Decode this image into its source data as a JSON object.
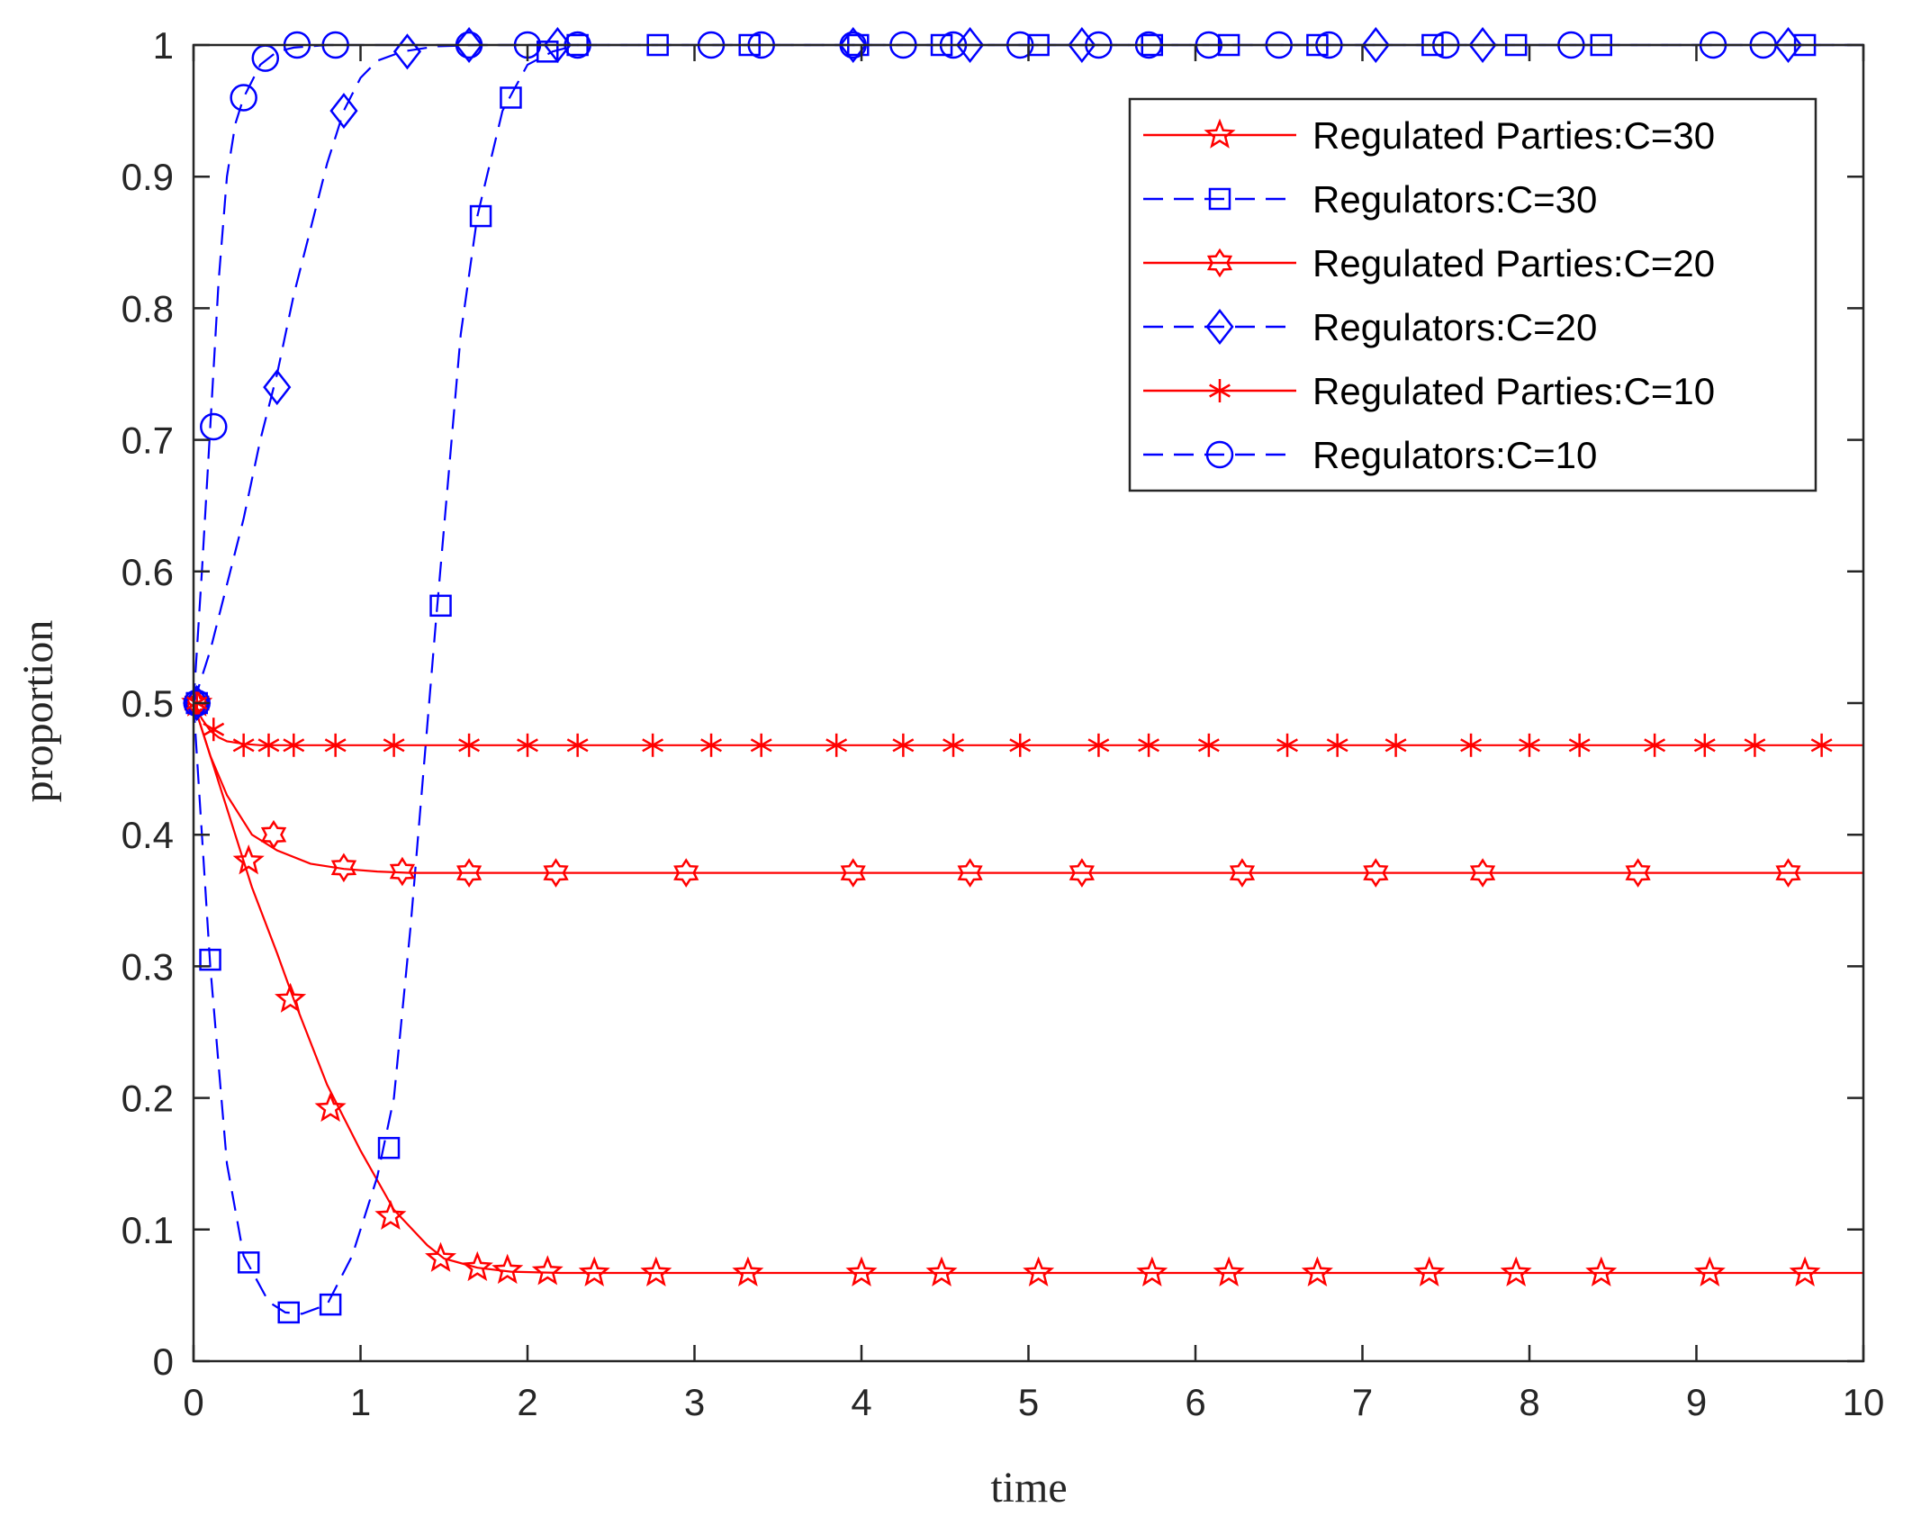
{
  "chart_data": {
    "type": "line",
    "title": "",
    "xlabel": "time",
    "ylabel": "proportion",
    "xlim": [
      0,
      10
    ],
    "ylim": [
      0,
      1
    ],
    "xticks": [
      0,
      1,
      2,
      3,
      4,
      5,
      6,
      7,
      8,
      9,
      10
    ],
    "yticks": [
      0,
      0.1,
      0.2,
      0.3,
      0.4,
      0.5,
      0.6,
      0.7,
      0.8,
      0.9,
      1
    ],
    "xtick_labels": [
      "0",
      "1",
      "2",
      "3",
      "4",
      "5",
      "6",
      "7",
      "8",
      "9",
      "10"
    ],
    "ytick_labels": [
      "0",
      "0.1",
      "0.2",
      "0.3",
      "0.4",
      "0.5",
      "0.6",
      "0.7",
      "0.8",
      "0.9",
      "1"
    ],
    "grid": false,
    "legend_position": "top-right",
    "series": [
      {
        "name": "Regulated Parties:C=30",
        "color": "#ff0000",
        "line_style": "solid",
        "marker": "pentagram",
        "x": [
          0,
          0.1,
          0.2,
          0.35,
          0.5,
          0.6,
          0.8,
          1.0,
          1.2,
          1.4,
          1.5,
          1.7,
          1.9,
          2.2,
          2.6,
          3.0,
          4.0,
          10
        ],
        "y": [
          0.5,
          0.46,
          0.42,
          0.36,
          0.31,
          0.275,
          0.21,
          0.16,
          0.115,
          0.088,
          0.078,
          0.071,
          0.068,
          0.067,
          0.067,
          0.067,
          0.067,
          0.067
        ],
        "markers_x": [
          0.02,
          0.33,
          0.58,
          0.82,
          1.18,
          1.48,
          1.7,
          1.88,
          2.12,
          2.4,
          2.77,
          3.32,
          4.0,
          4.48,
          5.06,
          5.74,
          6.2,
          6.73,
          7.4,
          7.92,
          8.43,
          9.08,
          9.65
        ],
        "markers_y": [
          0.5,
          0.38,
          0.275,
          0.192,
          0.11,
          0.078,
          0.071,
          0.069,
          0.068,
          0.067,
          0.067,
          0.067,
          0.067,
          0.067,
          0.067,
          0.067,
          0.067,
          0.067,
          0.067,
          0.067,
          0.067,
          0.067,
          0.067
        ]
      },
      {
        "name": "Regulators:C=30",
        "color": "#0000ff",
        "line_style": "dashed",
        "marker": "square",
        "x": [
          0,
          0.05,
          0.1,
          0.2,
          0.3,
          0.45,
          0.55,
          0.65,
          0.8,
          0.95,
          1.1,
          1.2,
          1.3,
          1.45,
          1.6,
          1.7,
          1.85,
          2.0,
          2.15,
          2.3,
          2.6,
          10
        ],
        "y": [
          0.5,
          0.4,
          0.3,
          0.15,
          0.08,
          0.045,
          0.037,
          0.036,
          0.043,
          0.08,
          0.14,
          0.2,
          0.33,
          0.56,
          0.78,
          0.87,
          0.95,
          0.985,
          0.995,
          1.0,
          1.0,
          1.0
        ],
        "markers_x": [
          0.02,
          0.1,
          0.33,
          0.57,
          0.82,
          1.17,
          1.48,
          1.72,
          1.9,
          2.12,
          2.3,
          2.78,
          3.33,
          3.98,
          4.48,
          5.06,
          5.74,
          6.2,
          6.73,
          7.42,
          7.92,
          8.43,
          9.65
        ],
        "markers_y": [
          0.5,
          0.305,
          0.075,
          0.037,
          0.043,
          0.162,
          0.574,
          0.87,
          0.96,
          0.995,
          1.0,
          1.0,
          1.0,
          1.0,
          1.0,
          1.0,
          1.0,
          1.0,
          1.0,
          1.0,
          1.0,
          1.0,
          1.0
        ]
      },
      {
        "name": "Regulated Parties:C=20",
        "color": "#ff0000",
        "line_style": "solid",
        "marker": "hexagram",
        "x": [
          0,
          0.1,
          0.2,
          0.35,
          0.5,
          0.7,
          0.9,
          1.1,
          1.3,
          1.6,
          2.0,
          10
        ],
        "y": [
          0.5,
          0.46,
          0.43,
          0.4,
          0.388,
          0.378,
          0.374,
          0.372,
          0.371,
          0.371,
          0.371,
          0.371
        ],
        "markers_x": [
          0.02,
          0.48,
          0.9,
          1.25,
          1.65,
          2.17,
          2.95,
          3.95,
          4.65,
          5.32,
          6.28,
          7.08,
          7.72,
          8.65,
          9.55
        ],
        "markers_y": [
          0.5,
          0.4,
          0.375,
          0.372,
          0.371,
          0.371,
          0.371,
          0.371,
          0.371,
          0.371,
          0.371,
          0.371,
          0.371,
          0.371,
          0.371
        ]
      },
      {
        "name": "Regulators:C=20",
        "color": "#0000ff",
        "line_style": "dashed",
        "marker": "diamond",
        "x": [
          0,
          0.1,
          0.2,
          0.3,
          0.4,
          0.5,
          0.6,
          0.7,
          0.8,
          0.9,
          1.0,
          1.1,
          1.25,
          1.45,
          1.7,
          2.0,
          10
        ],
        "y": [
          0.5,
          0.54,
          0.59,
          0.64,
          0.7,
          0.75,
          0.81,
          0.86,
          0.91,
          0.95,
          0.975,
          0.988,
          0.995,
          0.999,
          1.0,
          1.0,
          1.0
        ],
        "markers_x": [
          0.02,
          0.5,
          0.9,
          1.28,
          1.65,
          2.18,
          3.95,
          4.65,
          5.32,
          7.08,
          7.72,
          9.55
        ],
        "markers_y": [
          0.5,
          0.74,
          0.95,
          0.995,
          1.0,
          1.0,
          1.0,
          1.0,
          1.0,
          1.0,
          1.0,
          1.0
        ]
      },
      {
        "name": "Regulated Parties:C=10",
        "color": "#ff0000",
        "line_style": "solid",
        "marker": "asterisk",
        "x": [
          0,
          0.05,
          0.1,
          0.15,
          0.2,
          0.3,
          0.4,
          0.5,
          10
        ],
        "y": [
          0.5,
          0.488,
          0.479,
          0.474,
          0.471,
          0.469,
          0.468,
          0.468,
          0.468
        ],
        "markers_x": [
          0.02,
          0.12,
          0.3,
          0.45,
          0.6,
          0.85,
          1.2,
          1.65,
          2.0,
          2.3,
          2.75,
          3.1,
          3.4,
          3.85,
          4.25,
          4.55,
          4.95,
          5.42,
          5.72,
          6.08,
          6.55,
          6.85,
          7.2,
          7.65,
          8.0,
          8.3,
          8.75,
          9.05,
          9.35,
          9.75
        ],
        "markers_y": [
          0.5,
          0.48,
          0.468,
          0.468,
          0.468,
          0.468,
          0.468,
          0.468,
          0.468,
          0.468,
          0.468,
          0.468,
          0.468,
          0.468,
          0.468,
          0.468,
          0.468,
          0.468,
          0.468,
          0.468,
          0.468,
          0.468,
          0.468,
          0.468,
          0.468,
          0.468,
          0.468,
          0.468,
          0.468,
          0.468
        ]
      },
      {
        "name": "Regulators:C=10",
        "color": "#0000ff",
        "line_style": "dashed",
        "marker": "circle",
        "x": [
          0,
          0.05,
          0.1,
          0.15,
          0.2,
          0.25,
          0.3,
          0.4,
          0.5,
          0.6,
          0.8,
          1.0,
          10
        ],
        "y": [
          0.5,
          0.6,
          0.71,
          0.82,
          0.9,
          0.94,
          0.96,
          0.985,
          0.995,
          0.998,
          1.0,
          1.0,
          1.0
        ],
        "markers_x": [
          0.02,
          0.12,
          0.3,
          0.43,
          0.62,
          0.85,
          1.65,
          2.0,
          2.3,
          3.1,
          3.4,
          3.95,
          4.25,
          4.55,
          4.95,
          5.42,
          5.72,
          6.08,
          6.5,
          6.8,
          7.5,
          8.25,
          9.1,
          9.4
        ],
        "markers_y": [
          0.5,
          0.71,
          0.96,
          0.99,
          1.0,
          1.0,
          1.0,
          1.0,
          1.0,
          1.0,
          1.0,
          1.0,
          1.0,
          1.0,
          1.0,
          1.0,
          1.0,
          1.0,
          1.0,
          1.0,
          1.0,
          1.0,
          1.0,
          1.0
        ]
      }
    ]
  }
}
